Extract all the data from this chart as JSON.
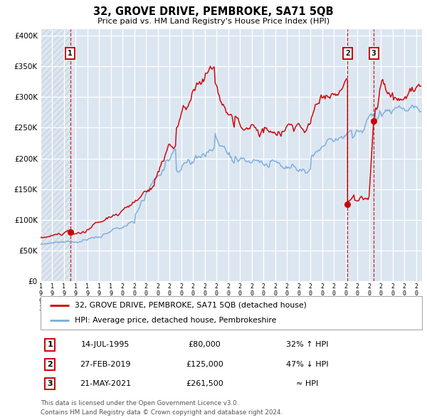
{
  "title": "32, GROVE DRIVE, PEMBROKE, SA71 5QB",
  "subtitle": "Price paid vs. HM Land Registry's House Price Index (HPI)",
  "sale1_date_num": 1995.54,
  "sale1_price": 80000,
  "sale2_date_num": 2019.16,
  "sale2_price": 125000,
  "sale3_date_num": 2021.39,
  "sale3_price": 261500,
  "legend_red": "32, GROVE DRIVE, PEMBROKE, SA71 5QB (detached house)",
  "legend_blue": "HPI: Average price, detached house, Pembrokeshire",
  "table_rows": [
    {
      "num": "1",
      "date": "14-JUL-1995",
      "price": "£80,000",
      "hpi": "32% ↑ HPI"
    },
    {
      "num": "2",
      "date": "27-FEB-2019",
      "price": "£125,000",
      "hpi": "47% ↓ HPI"
    },
    {
      "num": "3",
      "date": "21-MAY-2021",
      "price": "£261,500",
      "hpi": "≈ HPI"
    }
  ],
  "footer1": "Contains HM Land Registry data © Crown copyright and database right 2024.",
  "footer2": "This data is licensed under the Open Government Licence v3.0.",
  "red_color": "#cc0000",
  "blue_color": "#7aaddb",
  "bg_color": "#dce6f1",
  "ylim_max": 410000,
  "xmin": 1993.0,
  "xmax": 2025.5
}
